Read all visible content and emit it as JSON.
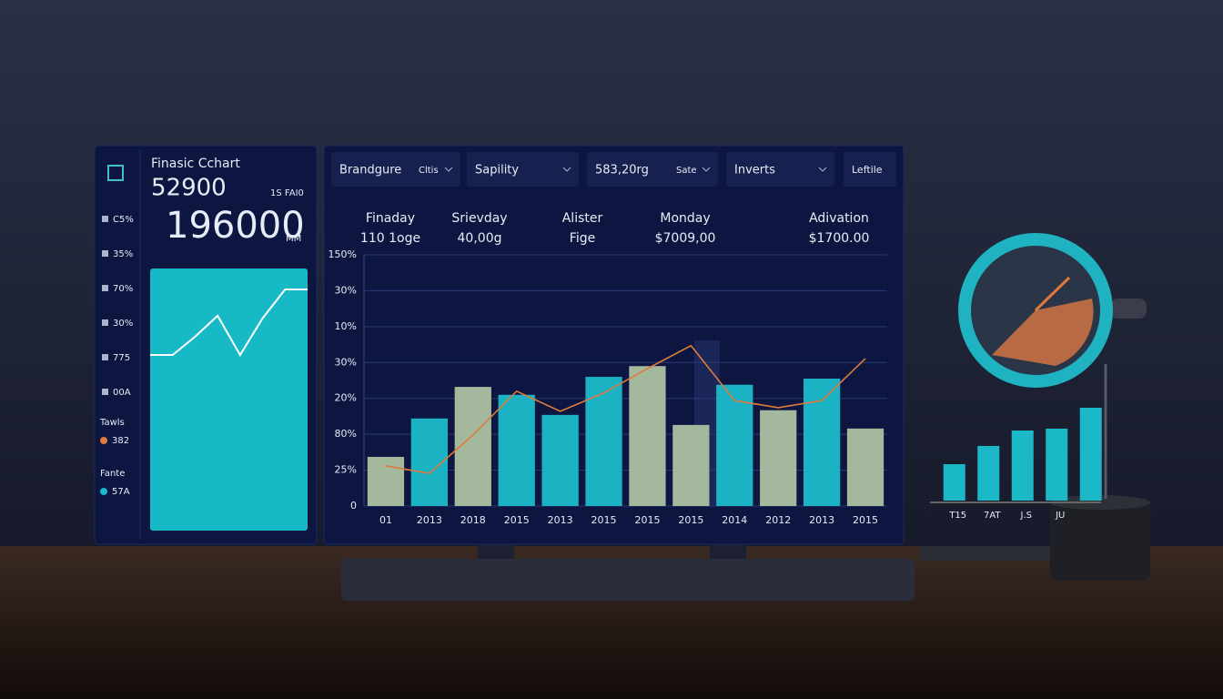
{
  "left_panel": {
    "title": "Finasic Cchart",
    "value_main": "52900",
    "value_note": "1S FAI0",
    "value_big": "196000",
    "value_unit": "MM",
    "side_items": [
      "C5%",
      "35%",
      "70%",
      "30%",
      "775",
      "00A"
    ],
    "legend": [
      {
        "title": "Tawls",
        "value": "382",
        "color": "#e07a3c"
      },
      {
        "title": "Fante",
        "value": "57A",
        "color": "#1bb8d0"
      }
    ],
    "sparkline": {
      "type": "line",
      "values": [
        67,
        67,
        74,
        82,
        67,
        81,
        92,
        92
      ],
      "ylim": [
        0,
        100
      ],
      "color": "#ffffff",
      "fill": "#17b9c6"
    }
  },
  "toolbar": [
    {
      "label": "Brandgure",
      "sub": "Cltis"
    },
    {
      "label": "Sapility"
    },
    {
      "label": "583,20rg",
      "sub": "Sate"
    },
    {
      "label": "Inverts"
    },
    {
      "label": "Leftile"
    }
  ],
  "stats": [
    {
      "title": "Finaday",
      "value": "110 1oge"
    },
    {
      "title": "Srievday",
      "value": "40,00g"
    },
    {
      "title": "Alister",
      "value": "Fige"
    },
    {
      "title": "Monday",
      "value": "$7009,00"
    },
    {
      "title": "Adivation",
      "value": "$1700.00"
    }
  ],
  "chart_data": {
    "type": "bar",
    "categories": [
      "01",
      "2013",
      "2018",
      "2015",
      "2013",
      "2015",
      "2015",
      "2015",
      "2014",
      "2012",
      "2013",
      "2015"
    ],
    "values": [
      1.37,
      2.44,
      3.32,
      3.1,
      2.54,
      3.6,
      3.9,
      2.26,
      3.38,
      2.67,
      3.55,
      2.16
    ],
    "colors": [
      "#a3b89c",
      "#1bb3c4",
      "#a3b89c",
      "#1bb3c4",
      "#1bb3c4",
      "#1bb3c4",
      "#a3b89c",
      "#a3b89c",
      "#1bb3c4",
      "#a3b89c",
      "#1bb3c4",
      "#a3b89c"
    ],
    "line": {
      "color": "#e07a3c",
      "values": [
        1.12,
        0.91,
        1.98,
        3.2,
        2.64,
        3.15,
        3.83,
        4.47,
        2.94,
        2.74,
        2.94,
        4.11
      ]
    },
    "ylim": [
      0,
      7
    ],
    "yticks": [
      {
        "value": 0,
        "label": "0"
      },
      {
        "value": 1,
        "label": "25%"
      },
      {
        "value": 2,
        "label": "80%"
      },
      {
        "value": 3,
        "label": "20%"
      },
      {
        "value": 4,
        "label": "30%"
      },
      {
        "value": 5,
        "label": "10%"
      },
      {
        "value": 6,
        "label": "30%"
      },
      {
        "value": 7,
        "label": "150%"
      }
    ],
    "grid": true
  },
  "side_chart": {
    "type": "bar",
    "categories": [
      "T15",
      "7AT",
      "J.S",
      "JU",
      null
    ],
    "values": [
      40,
      60,
      77,
      79,
      102
    ],
    "ylim": [
      0,
      110
    ],
    "color": "#1bb8c8"
  }
}
